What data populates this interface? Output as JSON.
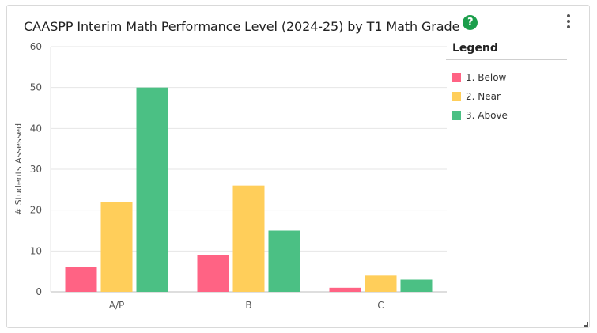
{
  "card": {
    "title": "CAASPP Interim Math Performance Level (2024-25) by T1 Math Grade",
    "help_icon": "question-circle-icon",
    "menu_icon": "vertical-ellipsis-icon"
  },
  "legend": {
    "title": "Legend"
  },
  "chart_data": {
    "type": "bar",
    "title": "CAASPP Interim Math Performance Level (2024-25) by T1 Math Grade",
    "xlabel": "",
    "ylabel": "# Students Assessed",
    "ylim": [
      0,
      60
    ],
    "yticks": [
      0,
      10,
      20,
      30,
      40,
      50,
      60
    ],
    "grid": true,
    "legend_position": "right",
    "categories": [
      "A/P",
      "B",
      "C"
    ],
    "series": [
      {
        "name": "1. Below",
        "color": "#ff6384",
        "values": [
          6,
          9,
          1
        ]
      },
      {
        "name": "2. Near",
        "color": "#ffce5a",
        "values": [
          22,
          26,
          4
        ]
      },
      {
        "name": "3. Above",
        "color": "#4bc084",
        "values": [
          50,
          15,
          3
        ]
      }
    ]
  }
}
